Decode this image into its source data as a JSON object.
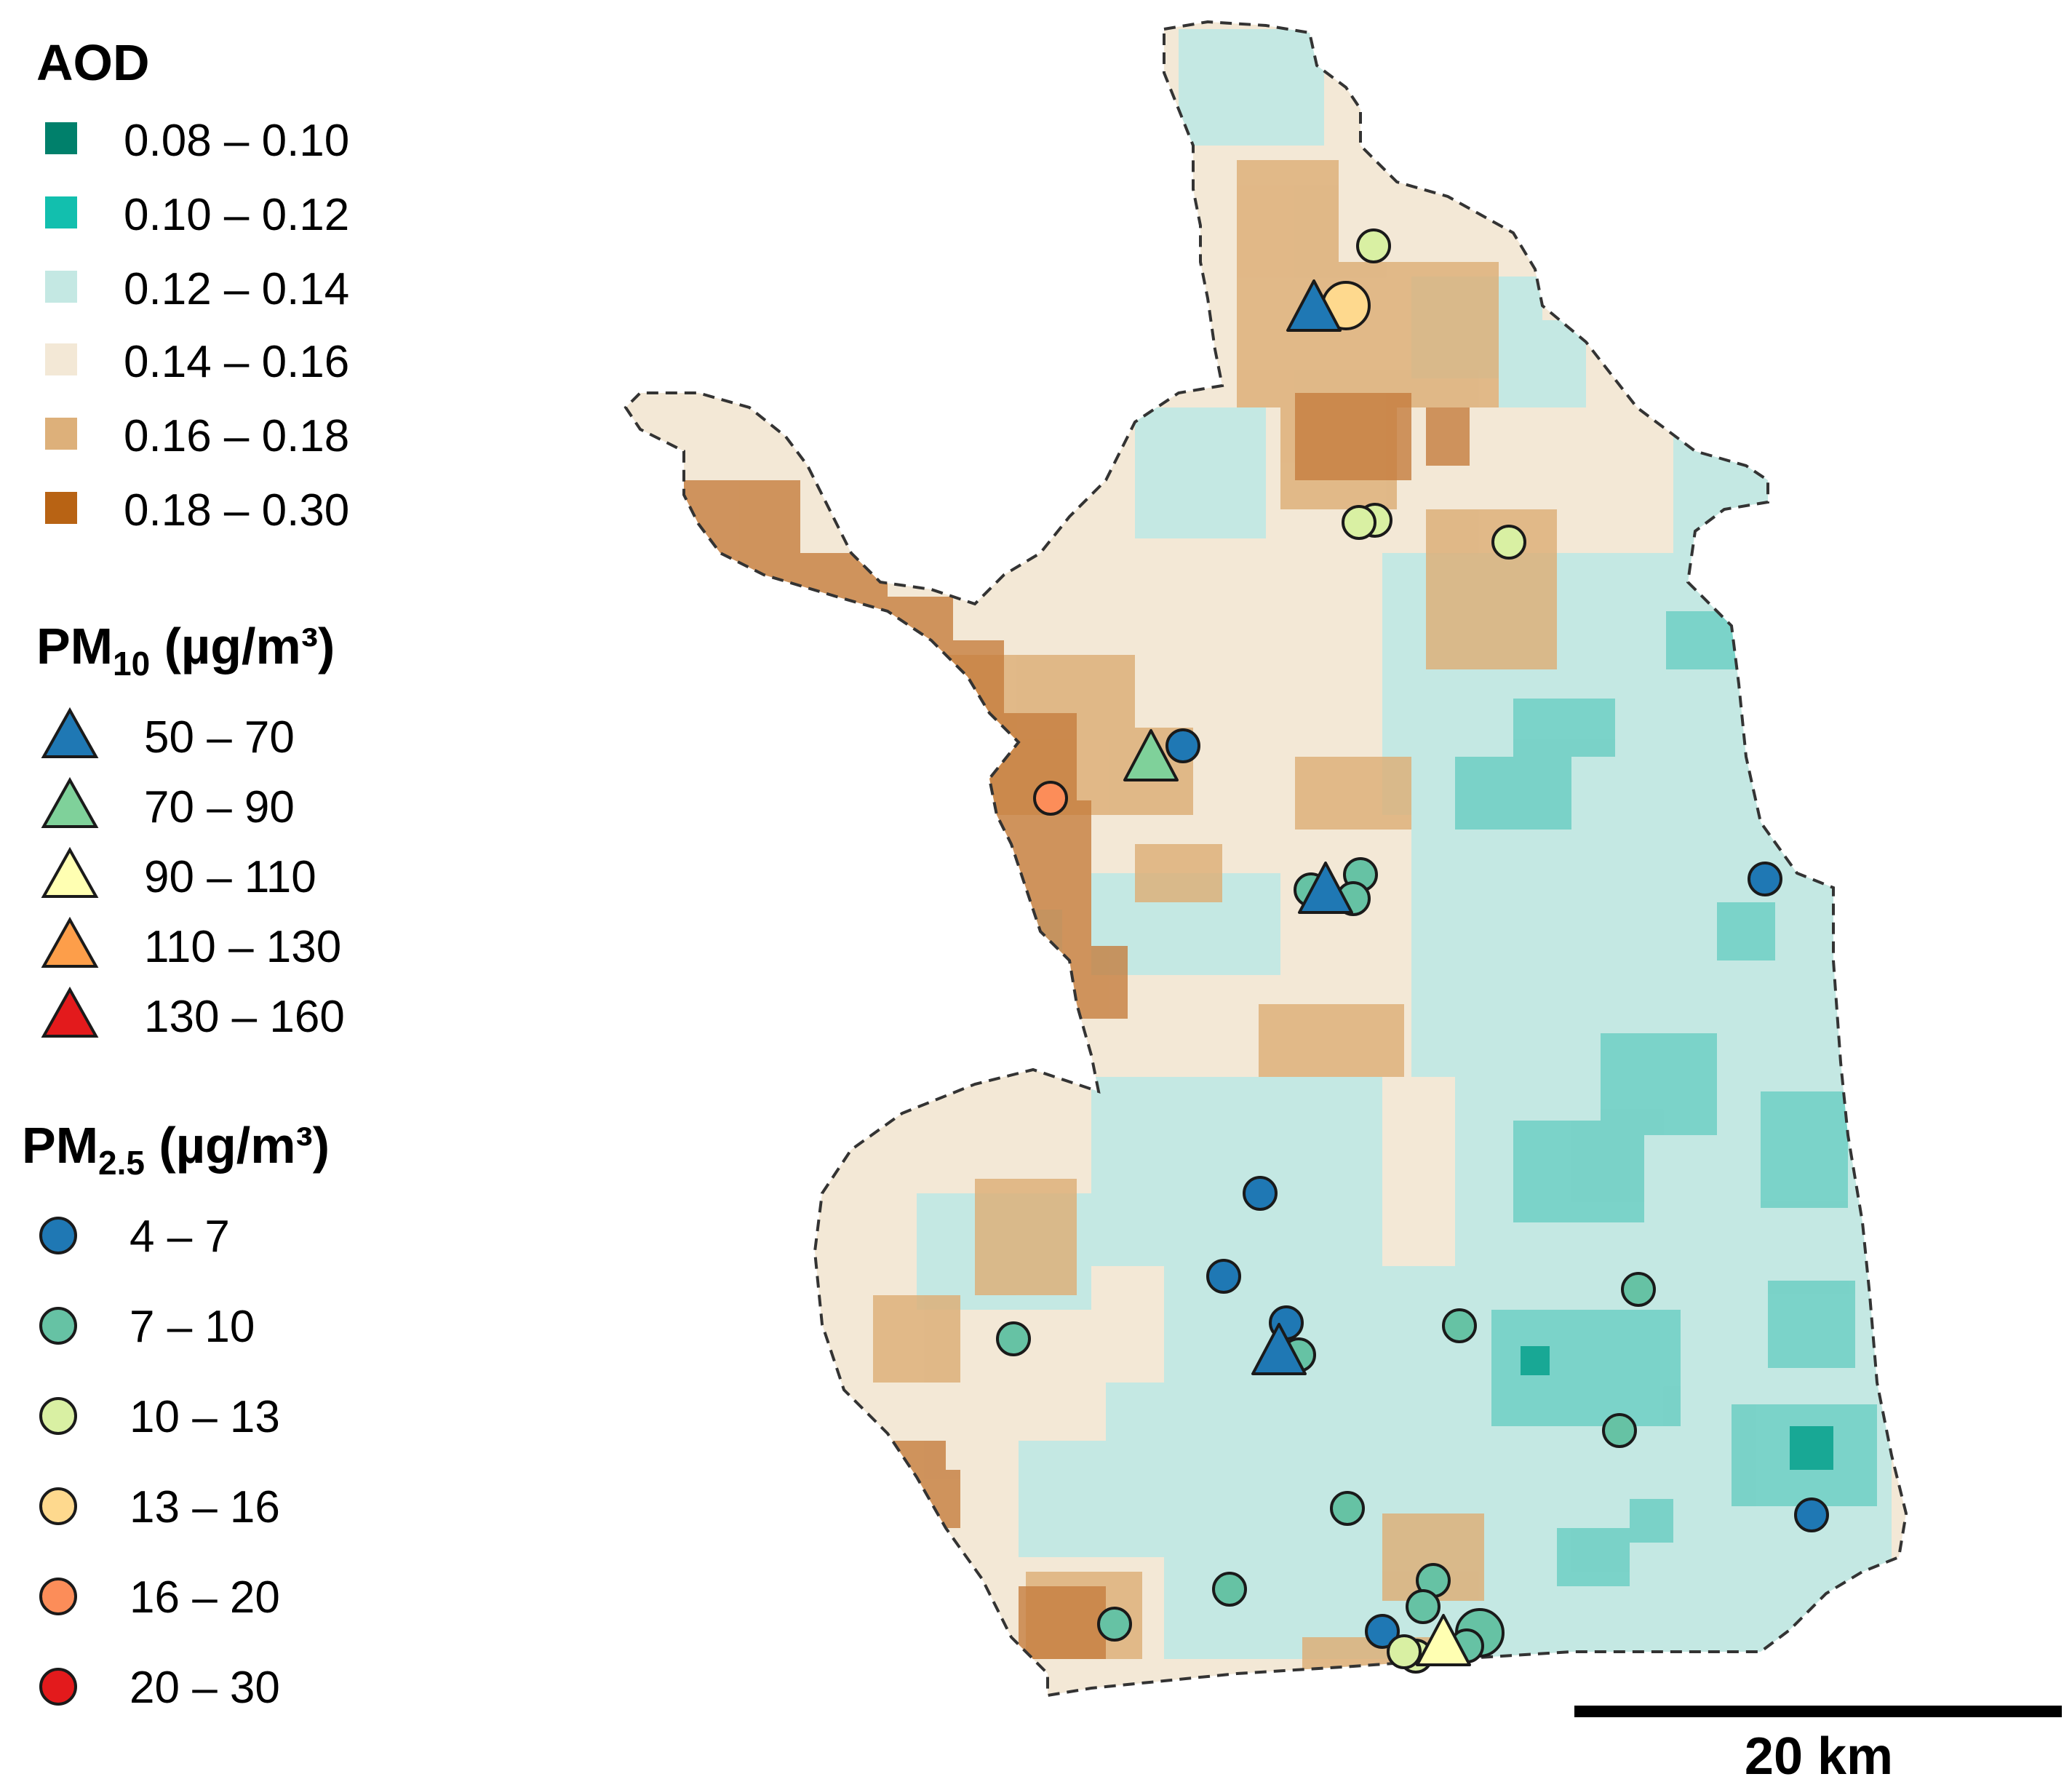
{
  "legend": {
    "aod": {
      "title": "AOD",
      "classes": [
        {
          "label": "0.08 – 0.10",
          "color": "#00806b"
        },
        {
          "label": "0.10 – 0.12",
          "color": "#12bfae"
        },
        {
          "label": "0.12 – 0.14",
          "color": "#c4e8e3"
        },
        {
          "label": "0.14 – 0.16",
          "color": "#f3e8d6"
        },
        {
          "label": "0.16 – 0.18",
          "color": "#ddb07a"
        },
        {
          "label": "0.18 – 0.30",
          "color": "#b86314"
        }
      ]
    },
    "pm10": {
      "title_main": "PM",
      "title_sub": "10",
      "title_unit": " (µg/m³)",
      "classes": [
        {
          "label": "50 – 70",
          "color": "#1f78b4"
        },
        {
          "label": "70 – 90",
          "color": "#7fd19a"
        },
        {
          "label": "90 – 110",
          "color": "#ffffb2"
        },
        {
          "label": "110 – 130",
          "color": "#fd9e4a"
        },
        {
          "label": "130 – 160",
          "color": "#e31a1c"
        }
      ]
    },
    "pm25": {
      "title_main": "PM",
      "title_sub": "2.5",
      "title_unit": " (µg/m³)",
      "classes": [
        {
          "label": "4 – 7",
          "color": "#1f78b4"
        },
        {
          "label": "7 – 10",
          "color": "#66c2a4"
        },
        {
          "label": "10 – 13",
          "color": "#d9f0a3"
        },
        {
          "label": "13 – 16",
          "color": "#fed98e"
        },
        {
          "label": "16 – 20",
          "color": "#fc8d59"
        },
        {
          "label": "20 – 30",
          "color": "#e31a1c"
        }
      ]
    }
  },
  "scale_bar": {
    "label": "20 km"
  },
  "map": {
    "base_fill": "#f3e8d6",
    "pm10_stations": [
      {
        "class": "50 – 70"
      },
      {
        "class": "70 – 90"
      },
      {
        "class": "50 – 70"
      },
      {
        "class": "50 – 70"
      },
      {
        "class": "90 – 110"
      }
    ],
    "pm25_stations_count": 30
  }
}
